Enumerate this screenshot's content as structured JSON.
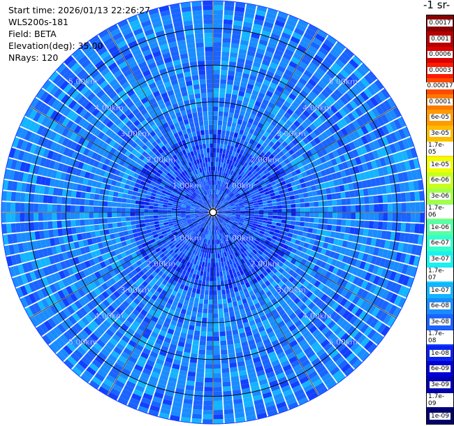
{
  "info": {
    "start_time": "Start time: 2026/01/13 22:26:27",
    "instrument": "WLS200s-181",
    "field": "Field: BETA",
    "elevation": "Elevation(deg): 35.00",
    "nrays": "NRays: 120"
  },
  "colorbar": {
    "title": "-1 sr-",
    "entries": [
      {
        "label": "0.0017",
        "color": "#8a0000",
        "text_color": "#ffffff"
      },
      {
        "label": "0.001",
        "color": "#b40000",
        "text_color": "#ffffff"
      },
      {
        "label": "0.0006",
        "color": "#dc0000",
        "text_color": "#ffffff"
      },
      {
        "label": "0.0003",
        "color": "#ff1a00",
        "text_color": "#ffffff"
      },
      {
        "label": "0.00017",
        "color": "#ff4a00",
        "text_color": "#ffffff"
      },
      {
        "label": "0.0001",
        "color": "#ff7800",
        "text_color": "#ffffff"
      },
      {
        "label": "6e-05",
        "color": "#ff9a00",
        "text_color": "#ffffff"
      },
      {
        "label": "3e-05",
        "color": "#ffbb00",
        "text_color": "#ffffff"
      },
      {
        "label": "1.7e-05",
        "color": "#ffde00",
        "text_color": "#000000"
      },
      {
        "label": "1e-05",
        "color": "#f0ff00",
        "text_color": "#000000"
      },
      {
        "label": "6e-06",
        "color": "#c6ff21",
        "text_color": "#000000"
      },
      {
        "label": "3e-06",
        "color": "#a2ff4a",
        "text_color": "#000000"
      },
      {
        "label": "1.7e-06",
        "color": "#7dff7a",
        "text_color": "#000000"
      },
      {
        "label": "1e-06",
        "color": "#58ffa4",
        "text_color": "#000000"
      },
      {
        "label": "6e-07",
        "color": "#33ffcc",
        "text_color": "#000000"
      },
      {
        "label": "3e-07",
        "color": "#19f2ee",
        "text_color": "#000000"
      },
      {
        "label": "1.7e-07",
        "color": "#10d4ff",
        "text_color": "#000000"
      },
      {
        "label": "1e-07",
        "color": "#14b4ff",
        "text_color": "#000000"
      },
      {
        "label": "6e-08",
        "color": "#1a8cff",
        "text_color": "#000000"
      },
      {
        "label": "3e-08",
        "color": "#1a64ff",
        "text_color": "#000000"
      },
      {
        "label": "1.7e-08",
        "color": "#1240ff",
        "text_color": "#ffffff"
      },
      {
        "label": "1e-08",
        "color": "#0a22f0",
        "text_color": "#ffffff"
      },
      {
        "label": "6e-09",
        "color": "#0000d4",
        "text_color": "#ffffff"
      },
      {
        "label": "3e-09",
        "color": "#0000b0",
        "text_color": "#ffffff"
      },
      {
        "label": "1.7e-09",
        "color": "#00008c",
        "text_color": "#ffffff"
      },
      {
        "label": "1e-09",
        "color": "#00006a",
        "text_color": "#ffffff"
      }
    ]
  },
  "chart_data": {
    "type": "heatmap",
    "plot": "PPI",
    "field": "BETA",
    "elevation_deg": 35.0,
    "nrays": 120,
    "max_range_km": 5.75,
    "range_rings_km": [
      1,
      2,
      3,
      4,
      5
    ],
    "range_labels": [
      "1.00km",
      "2.00km",
      "3.00km",
      "4.00km",
      "5.00km"
    ],
    "label_azimuths_deg": [
      315,
      45,
      225,
      135
    ],
    "spoke_azimuths_deg": [
      0,
      30,
      60,
      90,
      120,
      150,
      180,
      210,
      240,
      270,
      300,
      330
    ],
    "dominant_value_range": [
      "3e-08",
      "1e-07"
    ],
    "grid": true
  }
}
